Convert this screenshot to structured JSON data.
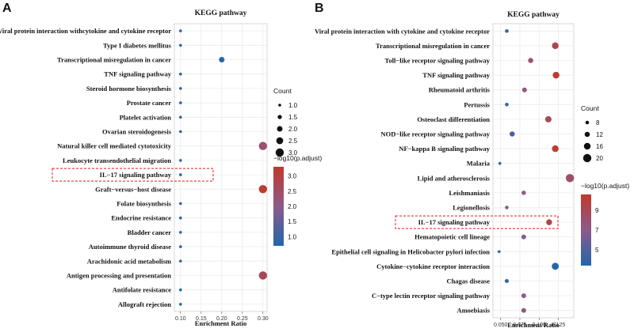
{
  "panels": {
    "A": {
      "letter": "A"
    },
    "B": {
      "letter": "B"
    }
  },
  "colors": {
    "low": "#2166ac",
    "mid": "#8d5a8a",
    "high": "#c0392b",
    "highlight_box": "#e41a1c",
    "grid": "#ebebeb"
  },
  "chart_data": [
    {
      "type": "scatter",
      "title": "KEGG pathway",
      "xlabel": "Enrichment Ratio",
      "ylabel": "",
      "xlim": [
        0.085,
        0.31
      ],
      "xticks": [
        0.1,
        0.15,
        0.2,
        0.25,
        0.3
      ],
      "xtick_labels": [
        "0.10",
        "0.15",
        "0.20",
        "0.25",
        "0.30"
      ],
      "highlight": "IL−17 signaling pathway",
      "categories": [
        "Viral protein interaction withcytokine and cytokine receptor",
        "Type I diabetes mellitus",
        "Transcriptional misregulation in cancer",
        "TNF signaling pathway",
        "Steroid hormone biosynthesis",
        "Prostate cancer",
        "Platelet activation",
        "Ovarian steroidogenesis",
        "Natural killer cell mediated cytotoxicity",
        "Leukocyte transendothelial migration",
        "IL−17 signaling pathway",
        "Graft−versus−host disease",
        "Folate biosynthesis",
        "Endocrine resistance",
        "Bladder cancer",
        "Autoimmune thyroid disease",
        "Arachidonic acid metabolism",
        "Antigen processing and presentation",
        "Antifolate resistance",
        "Allograft rejection"
      ],
      "enrichment_ratio": [
        0.1,
        0.1,
        0.2,
        0.1,
        0.1,
        0.1,
        0.1,
        0.1,
        0.3,
        0.1,
        0.1,
        0.3,
        0.1,
        0.1,
        0.1,
        0.1,
        0.1,
        0.3,
        0.1,
        0.1
      ],
      "count": [
        1,
        1,
        2,
        1,
        1,
        1,
        1,
        1,
        3,
        1,
        1,
        3,
        1,
        1,
        1,
        1,
        1,
        3,
        1,
        1
      ],
      "neg_log10_padj": [
        0.8,
        0.8,
        0.8,
        0.8,
        0.8,
        0.8,
        0.8,
        0.8,
        2.4,
        0.8,
        0.8,
        3.2,
        0.8,
        0.8,
        0.8,
        0.8,
        0.8,
        2.7,
        0.8,
        0.8
      ],
      "size_legend": {
        "title": "Count",
        "values": [
          "1.0",
          "1.5",
          "2.0",
          "2.5",
          "3.0"
        ]
      },
      "color_legend": {
        "title": "−log10(p.adjust)",
        "ticks": [
          "3.0",
          "2.5",
          "2.0",
          "1.5",
          "1.0"
        ],
        "range": [
          0.7,
          3.3
        ]
      }
    },
    {
      "type": "scatter",
      "title": "KEGG pathway",
      "xlabel": "Enrichment Ratio",
      "ylabel": "",
      "xlim": [
        0.04,
        0.145
      ],
      "xticks": [
        0.05,
        0.075,
        0.1,
        0.125
      ],
      "xtick_labels": [
        "0.050",
        "0.075",
        "0.100",
        "0.125"
      ],
      "highlight": "IL−17 signaling pathway",
      "categories": [
        "Viral protein interaction with cytokine and cytokine receptor",
        "Transcriptional misregulation in cancer",
        "Toll−like receptor signaling pathway",
        "TNF signaling pathway",
        "Rheumatoid arthritis",
        "Pertussis",
        "Osteoclast differentiation",
        "NOD−like receptor signaling pathway",
        "NF−kappa B signaling pathway",
        "Malaria",
        "Lipid    and    atherosclerosis",
        "Leishmaniasis",
        "Legionellosis",
        "IL−17 signaling pathway",
        "Hematopoietic cell lineage",
        "Epithelial cell signaling in Helicobacter pylori infection",
        "Cytokine−cytokine receptor interaction",
        "Chagas disease",
        "C−type lectin receptor signaling pathway",
        "Amoebiasis"
      ],
      "enrichment_ratio": [
        0.058,
        0.121,
        0.089,
        0.122,
        0.081,
        0.058,
        0.112,
        0.065,
        0.121,
        0.049,
        0.14,
        0.08,
        0.058,
        0.113,
        0.08,
        0.048,
        0.121,
        0.058,
        0.08,
        0.08
      ],
      "count": [
        8,
        16,
        12,
        16,
        11,
        8,
        15,
        12,
        16,
        6,
        20,
        10,
        8,
        14,
        11,
        6,
        17,
        9,
        11,
        11
      ],
      "neg_log10_padj": [
        4.0,
        9.2,
        7.8,
        10.2,
        7.3,
        4.2,
        8.8,
        4.5,
        10.2,
        3.8,
        8.3,
        7.2,
        6.9,
        9.3,
        6.8,
        3.8,
        3.6,
        3.8,
        7.0,
        7.3
      ],
      "size_legend": {
        "title": "Count",
        "values": [
          "8",
          "12",
          "16",
          "20"
        ]
      },
      "color_legend": {
        "title": "−log10(p.adjust)",
        "ticks": [
          "9",
          "7",
          "5"
        ],
        "range": [
          3.4,
          10.6
        ]
      }
    }
  ]
}
